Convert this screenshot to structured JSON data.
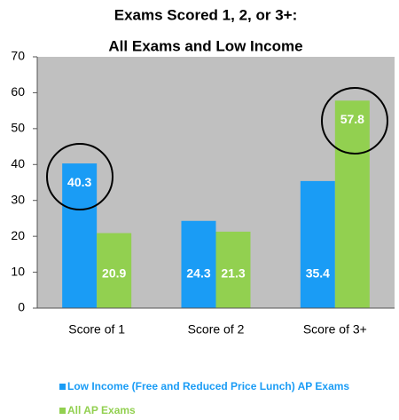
{
  "chart_data": {
    "type": "bar",
    "title": "Exams Scored 1, 2, or 3+:",
    "subtitle": "All Exams and Low Income",
    "categories": [
      "Score of 1",
      "Score of 2",
      "Score of 3+"
    ],
    "series": [
      {
        "name": "Low Income (Free and Reduced Price Lunch) AP Exams",
        "color": "#1a9cf5",
        "values": [
          40.3,
          24.3,
          35.4
        ]
      },
      {
        "name": "All AP Exams",
        "color": "#92d050",
        "values": [
          20.9,
          21.3,
          57.8
        ]
      }
    ],
    "ylim": [
      0,
      70
    ],
    "yticks": [
      0,
      10,
      20,
      30,
      40,
      50,
      60,
      70
    ]
  }
}
